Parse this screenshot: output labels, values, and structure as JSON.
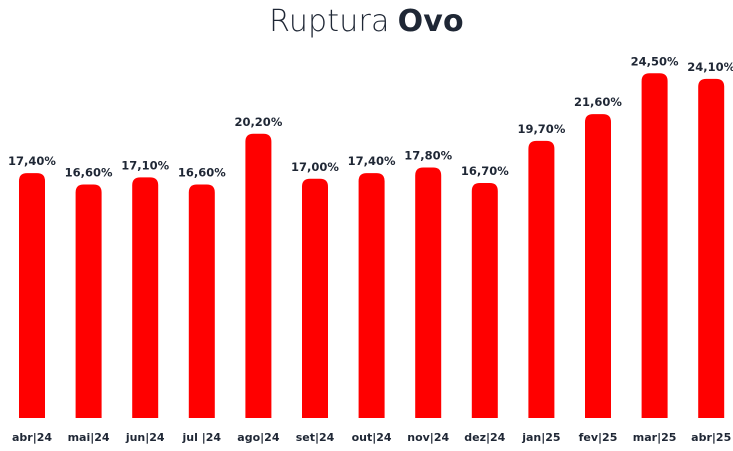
{
  "title": {
    "regular": "Ruptura",
    "bold": "Ovo"
  },
  "colors": {
    "bar": "#ff0000",
    "text": "#1f2735",
    "background": "#ffffff"
  },
  "chart_data": {
    "type": "bar",
    "title": "Ruptura Ovo",
    "categories": [
      "abr|24",
      "mai|24",
      "jun|24",
      "jul |24",
      "ago|24",
      "set|24",
      "out|24",
      "nov|24",
      "dez|24",
      "jan|25",
      "fev|25",
      "mar|25",
      "abr|25"
    ],
    "values": [
      17.4,
      16.6,
      17.1,
      16.6,
      20.2,
      17.0,
      17.4,
      17.8,
      16.7,
      19.7,
      21.6,
      24.5,
      24.1
    ],
    "value_labels": [
      "17,40%",
      "16,60%",
      "17,10%",
      "16,60%",
      "20,20%",
      "17,00%",
      "17,40%",
      "17,80%",
      "16,70%",
      "19,70%",
      "21,60%",
      "24,50%",
      "24,10%"
    ],
    "xlabel": "",
    "ylabel": "",
    "ylim": [
      0,
      26
    ],
    "grid": false,
    "legend": "none"
  }
}
